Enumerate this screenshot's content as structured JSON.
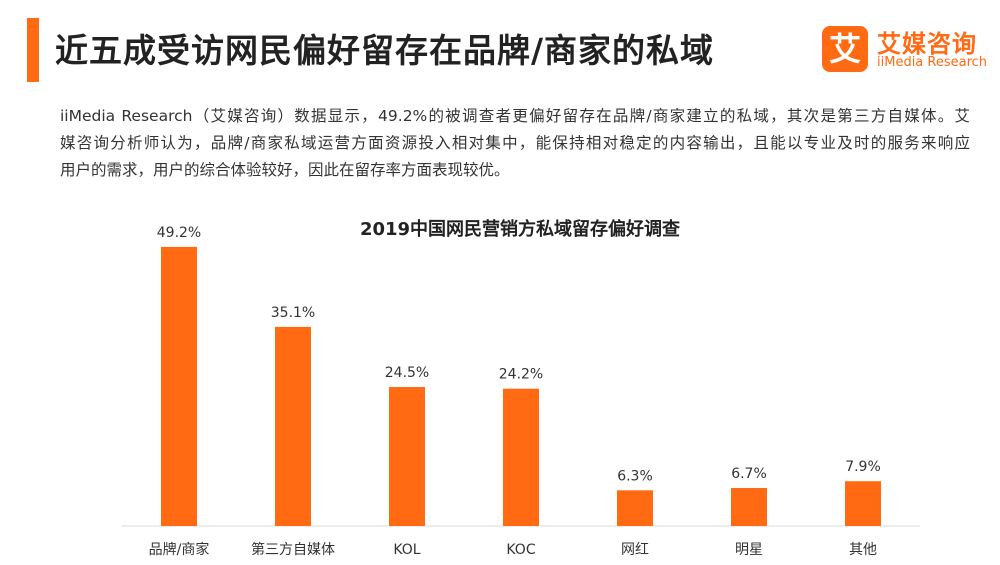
{
  "header": {
    "title": "近五成受访网民偏好留存在品牌/商家的私域"
  },
  "logo": {
    "mark": "艾",
    "name_cn": "艾媒咨询",
    "name_en": "iiMedia Research"
  },
  "summary": {
    "lines": [
      "iiMedia Research（艾媒咨询）数据显示，49.2%的被调查者更偏好留存在品牌/商家建立的私域，其次是第三方自媒体。艾",
      "媒咨询分析师认为，品牌/商家私域运营方面资源投入相对集中，能保持相对稳定的内容输出，且能以专业及时的服务来响应",
      "用户的需求，用户的综合体验较好，因此在留存率方面表现较优。"
    ]
  },
  "colors": {
    "accent": "#ff6a13",
    "bar": "#ff6a13",
    "axis": "#d9d9d9"
  },
  "chart_data": {
    "type": "bar",
    "title": "2019中国网民营销方私域留存偏好调查",
    "categories": [
      "品牌/商家",
      "第三方自媒体",
      "KOL",
      "KOC",
      "网红",
      "明星",
      "其他"
    ],
    "values": [
      49.2,
      35.1,
      24.5,
      24.2,
      6.3,
      6.7,
      7.9
    ],
    "value_labels": [
      "49.2%",
      "35.1%",
      "24.5%",
      "24.2%",
      "6.3%",
      "6.7%",
      "7.9%"
    ],
    "unit": "%",
    "ylim": [
      0,
      60
    ],
    "grid": false,
    "legend": "none"
  }
}
